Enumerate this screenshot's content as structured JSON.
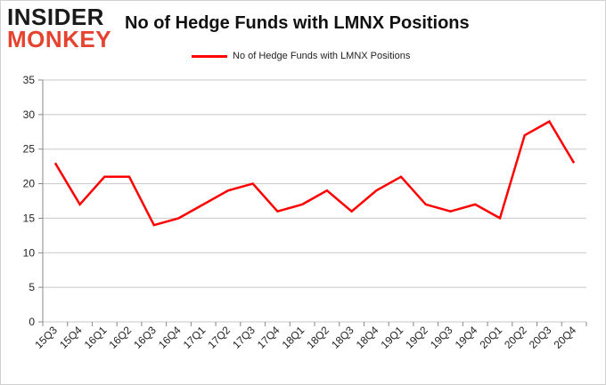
{
  "brand": {
    "line1": "INSIDER",
    "line2": "MONKEY"
  },
  "colors": {
    "line": "#ff0000",
    "grid": "#c8c8c8",
    "brand_dark": "#1a1a1a",
    "brand_red": "#e5432f"
  },
  "chart_data": {
    "type": "line",
    "title": "No of Hedge Funds with LMNX Positions",
    "xlabel": "",
    "ylabel": "",
    "ylim": [
      0,
      35
    ],
    "yticks": [
      0,
      5,
      10,
      15,
      20,
      25,
      30,
      35
    ],
    "grid": true,
    "legend_position": "top-center",
    "categories": [
      "15Q3",
      "15Q4",
      "16Q1",
      "16Q2",
      "16Q3",
      "16Q4",
      "17Q1",
      "17Q2",
      "17Q3",
      "17Q4",
      "18Q1",
      "18Q2",
      "18Q3",
      "18Q4",
      "19Q1",
      "19Q2",
      "19Q3",
      "19Q4",
      "20Q1",
      "20Q2",
      "20Q3",
      "20Q4"
    ],
    "series": [
      {
        "name": "No of Hedge Funds with LMNX Positions",
        "color": "#ff0000",
        "values": [
          23,
          17,
          21,
          21,
          14,
          15,
          17,
          19,
          20,
          16,
          17,
          19,
          16,
          19,
          21,
          17,
          16,
          17,
          15,
          27,
          29,
          23
        ]
      }
    ]
  }
}
